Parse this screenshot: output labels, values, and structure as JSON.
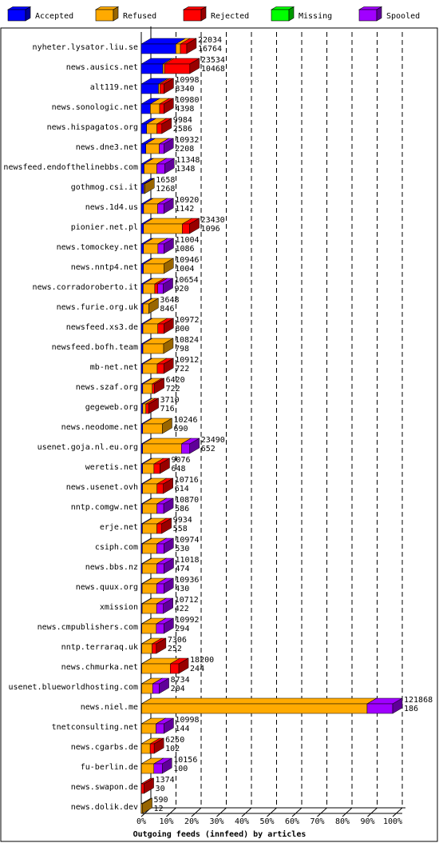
{
  "chart_data": {
    "type": "bar3d",
    "orientation": "horizontal",
    "stacked": true,
    "title": "Outgoing feeds (innfeed) by articles",
    "categories": [
      "nyheter.lysator.liu.se",
      "news.ausics.net",
      "alt119.net",
      "news.sonologic.net",
      "news.hispagatos.org",
      "news.dne3.net",
      "newsfeed.endofthelinebbs.com",
      "gothmog.csi.it",
      "news.1d4.us",
      "pionier.net.pl",
      "news.tomockey.net",
      "news.nntp4.net",
      "news.corradoroberto.it",
      "news.furie.org.uk",
      "newsfeed.xs3.de",
      "newsfeed.bofh.team",
      "mb-net.net",
      "news.szaf.org",
      "gegeweb.org",
      "news.neodome.net",
      "usenet.goja.nl.eu.org",
      "weretis.net",
      "news.usenet.ovh",
      "nntp.comgw.net",
      "erje.net",
      "csiph.com",
      "news.bbs.nz",
      "news.quux.org",
      "xmission",
      "news.cmpublishers.com",
      "nntp.terraraq.uk",
      "news.chmurka.net",
      "usenet.blueworldhosting.com",
      "news.niel.me",
      "tnetconsulting.net",
      "news.cgarbs.de",
      "fu-berlin.de",
      "news.swapon.de",
      "news.dolik.dev"
    ],
    "totals": [
      22034,
      23534,
      10998,
      10980,
      9984,
      10932,
      11348,
      1658,
      10920,
      23430,
      11004,
      10946,
      10654,
      3648,
      10972,
      10824,
      10912,
      6420,
      3710,
      10246,
      23490,
      9076,
      10716,
      10870,
      9934,
      10974,
      11018,
      10936,
      10712,
      10992,
      7306,
      18200,
      8734,
      121868,
      10998,
      6250,
      10156,
      1374,
      590
    ],
    "series": [
      {
        "name": "Accepted",
        "color": "#0000ff",
        "values": [
          16764,
          10468,
          8340,
          4398,
          2586,
          2208,
          1348,
          1268,
          1142,
          1096,
          1086,
          1004,
          920,
          846,
          800,
          798,
          722,
          722,
          716,
          690,
          652,
          648,
          614,
          586,
          558,
          530,
          474,
          430,
          422,
          294,
          252,
          244,
          204,
          186,
          144,
          102,
          100,
          30,
          12
        ]
      },
      {
        "name": "Refused",
        "color": "#ffaa00",
        "values": [
          2200,
          800,
          800,
          4500,
          5000,
          6500,
          6200,
          390,
          6800,
          18800,
          7000,
          9942,
          5600,
          2802,
          7200,
          10026,
          7000,
          4600,
          1500,
          9556,
          18800,
          5500,
          7000,
          7000,
          7000,
          7000,
          7000,
          7000,
          7000,
          7000,
          5000,
          13800,
          5300,
          109282,
          7000,
          4200,
          6000,
          0,
          578
        ]
      },
      {
        "name": "Rejected",
        "color": "#ff0000",
        "values": [
          3070,
          12266,
          1858,
          2082,
          2398,
          0,
          0,
          0,
          0,
          3534,
          0,
          0,
          1500,
          0,
          2972,
          0,
          3190,
          1098,
          1494,
          0,
          0,
          2928,
          3102,
          0,
          2376,
          0,
          0,
          0,
          0,
          0,
          2054,
          4156,
          0,
          0,
          0,
          1948,
          0,
          1344,
          0
        ]
      },
      {
        "name": "Missing",
        "color": "#00ff00",
        "values": [
          0,
          0,
          0,
          0,
          0,
          0,
          0,
          0,
          0,
          0,
          0,
          0,
          0,
          0,
          0,
          0,
          0,
          0,
          0,
          0,
          0,
          0,
          0,
          0,
          0,
          0,
          0,
          0,
          0,
          0,
          0,
          0,
          0,
          0,
          0,
          0,
          0,
          0,
          0
        ]
      },
      {
        "name": "Spooled",
        "color": "#a000ff",
        "values": [
          0,
          0,
          0,
          0,
          0,
          2224,
          3800,
          0,
          2978,
          0,
          2918,
          0,
          2634,
          0,
          0,
          0,
          0,
          0,
          0,
          0,
          4038,
          0,
          0,
          3284,
          0,
          3444,
          3544,
          3506,
          3290,
          3698,
          0,
          0,
          3230,
          12400,
          3854,
          0,
          4056,
          0,
          0
        ]
      }
    ],
    "xlim": [
      0,
      121868
    ],
    "xticks": [
      {
        "value": 0,
        "label": "0%"
      },
      {
        "value": 12186.8,
        "label": "10%"
      },
      {
        "value": 24373.6,
        "label": "20%"
      },
      {
        "value": 36560.4,
        "label": "30%"
      },
      {
        "value": 48747.2,
        "label": "40%"
      },
      {
        "value": 60934,
        "label": "50%"
      },
      {
        "value": 73120.8,
        "label": "60%"
      },
      {
        "value": 85307.6,
        "label": "70%"
      },
      {
        "value": 97494.4,
        "label": "80%"
      },
      {
        "value": 109681.2,
        "label": "90%"
      },
      {
        "value": 121868,
        "label": "100%"
      }
    ],
    "grid": true
  }
}
